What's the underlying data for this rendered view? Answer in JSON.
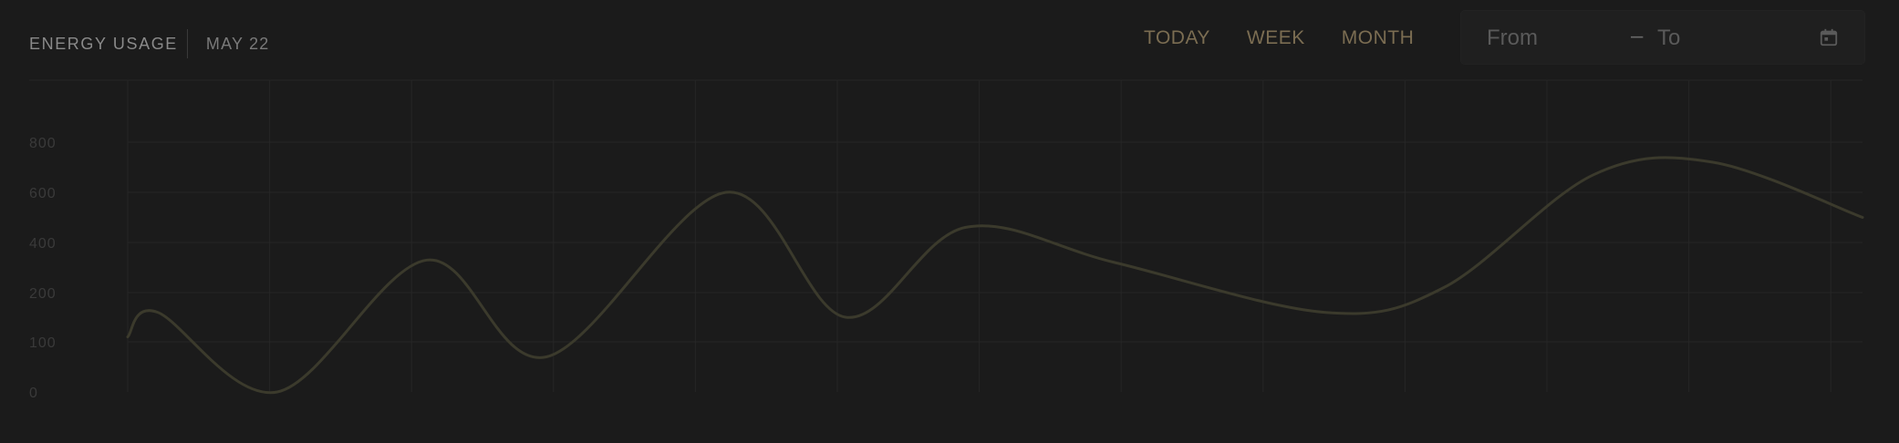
{
  "header": {
    "title": "ENERGY USAGE",
    "date": "MAY 22"
  },
  "range_tabs": [
    {
      "label": "TODAY"
    },
    {
      "label": "WEEK"
    },
    {
      "label": "MONTH"
    }
  ],
  "date_range": {
    "from_placeholder": "From",
    "separator": "–",
    "to_placeholder": "To",
    "icon": "calendar-icon"
  },
  "colors": {
    "background": "#1b1b1b",
    "grid": "#262626",
    "line": "#3b3a2c",
    "accent": "#7b6d52"
  },
  "chart_data": {
    "type": "line",
    "title": "",
    "xlabel": "",
    "ylabel": "",
    "y_ticks": [
      "0",
      "100",
      "200",
      "400",
      "600",
      "800"
    ],
    "grid": true,
    "x": [
      0,
      0.25,
      1.25,
      2.5,
      3.5,
      5,
      6,
      7,
      8.25,
      10,
      11,
      12.25,
      13.25,
      14.5
    ],
    "values": [
      110,
      160,
      0,
      330,
      70,
      600,
      150,
      460,
      320,
      160,
      220,
      670,
      720,
      500
    ]
  }
}
